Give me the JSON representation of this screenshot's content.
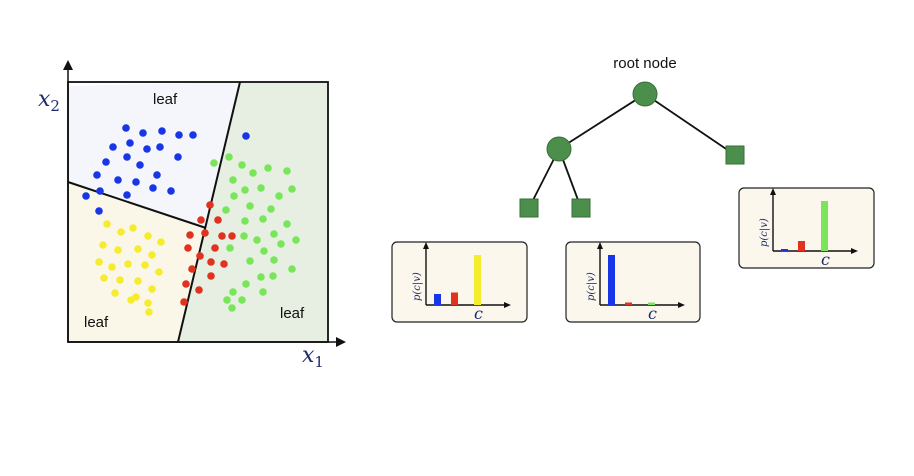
{
  "scatter": {
    "x_axis_label": "x",
    "x_axis_sub": "1",
    "y_axis_label": "x",
    "y_axis_sub": "2",
    "leaf_top": "leaf",
    "leaf_bottom_left": "leaf",
    "leaf_right": "leaf",
    "colors": {
      "blue": "#1836e6",
      "yellow": "#f6ec2e",
      "red": "#e0321e",
      "green": "#79e65a",
      "region_top": "#f4f6fb",
      "region_left": "#fbf7e8",
      "region_right": "#e6efe2",
      "axis": "#1e2a6e"
    }
  },
  "tree": {
    "root_label": "root node",
    "node_color": "#4c8e4c",
    "leaf_color": "#4c8e4c",
    "histogram_ylabel": "p(c|v)",
    "histogram_xlabel": "c",
    "histograms": [
      {
        "name": "left-leaf-histogram",
        "values": [
          0.22,
          0.25,
          1.0
        ],
        "colors": [
          "#1836e6",
          "#e0321e",
          "#f6ec2e"
        ]
      },
      {
        "name": "middle-leaf-histogram",
        "values": [
          1.0,
          0.05,
          0.05
        ],
        "colors": [
          "#1836e6",
          "#e0321e",
          "#79e65a"
        ]
      },
      {
        "name": "right-leaf-histogram",
        "values": [
          0.04,
          0.2,
          1.0
        ],
        "colors": [
          "#1836e6",
          "#e0321e",
          "#79e65a"
        ]
      }
    ]
  }
}
